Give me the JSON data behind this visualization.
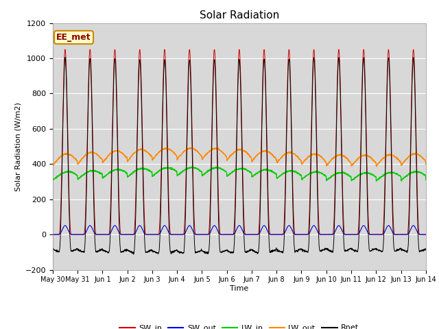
{
  "title": "Solar Radiation",
  "ylabel": "Solar Radiation (W/m2)",
  "xlabel": "Time",
  "ylim": [
    -200,
    1200
  ],
  "yticks": [
    -200,
    0,
    200,
    400,
    600,
    800,
    1000,
    1200
  ],
  "annotation_text": "EE_met",
  "legend_entries": [
    "SW_in",
    "SW_out",
    "LW_in",
    "LW_out",
    "Rnet"
  ],
  "line_colors": [
    "#cc0000",
    "#0000cc",
    "#00cc00",
    "#ff8800",
    "#000000"
  ],
  "background_color": "#ffffff",
  "plot_bg_color": "#d8d8d8",
  "num_days": 15,
  "points_per_day": 144,
  "tick_labels": [
    "May 30",
    "May 31",
    "Jun 1",
    "Jun 2",
    "Jun 3",
    "Jun 4",
    "Jun 5",
    "Jun 6",
    "Jun 7",
    "Jun 8",
    "Jun 9",
    "Jun 10",
    "Jun 11",
    "Jun 12",
    "Jun 13",
    "Jun 14"
  ]
}
